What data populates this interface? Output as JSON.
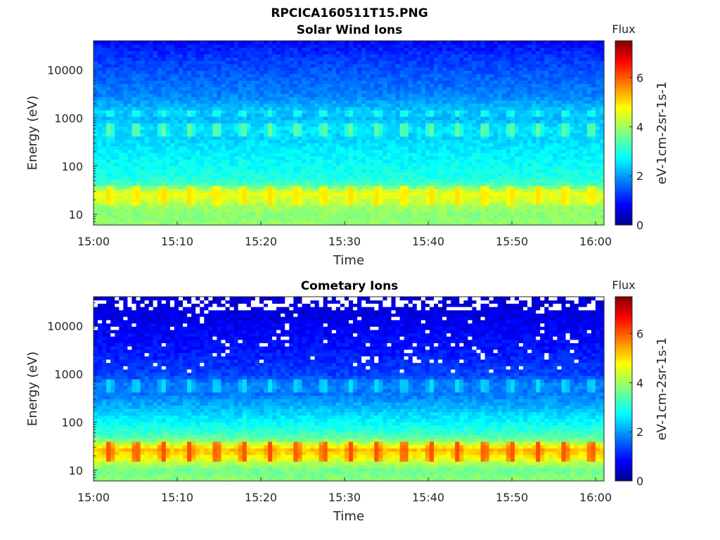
{
  "figure_title": "RPCICA160511T15.PNG",
  "colormap": "jet",
  "chart_data": [
    {
      "type": "heatmap",
      "title": "Solar Wind Ions",
      "xlabel": "Time",
      "ylabel": "Energy (eV)",
      "x_range": [
        "15:00",
        "16:01"
      ],
      "x_ticks": [
        "15:00",
        "15:10",
        "15:20",
        "15:30",
        "15:40",
        "15:50",
        "16:00"
      ],
      "y_scale": "log",
      "y_range": [
        6,
        40000
      ],
      "y_ticks": [
        "10",
        "100",
        "1000",
        "10000"
      ],
      "colorbar": {
        "title": "Flux",
        "label": "eV-1cm-2sr-1s-1",
        "range": [
          0,
          7.5
        ],
        "ticks": [
          "0",
          "2",
          "4",
          "6"
        ]
      },
      "energy_bands": [
        {
          "energy": 7,
          "level": 3.9
        },
        {
          "energy": 10,
          "level": 3.8
        },
        {
          "energy": 15,
          "level": 4.0
        },
        {
          "energy": 20,
          "level": 4.3
        },
        {
          "energy": 28,
          "level": 4.6
        },
        {
          "energy": 40,
          "level": 3.4
        },
        {
          "energy": 60,
          "level": 3.0
        },
        {
          "energy": 100,
          "level": 2.9
        },
        {
          "energy": 200,
          "level": 2.7
        },
        {
          "energy": 400,
          "level": 2.5
        },
        {
          "energy": 600,
          "level": 2.6
        },
        {
          "energy": 1000,
          "level": 2.3
        },
        {
          "energy": 1400,
          "level": 2.4
        },
        {
          "energy": 3000,
          "level": 1.9
        },
        {
          "energy": 8000,
          "level": 1.6
        },
        {
          "energy": 20000,
          "level": 1.3
        },
        {
          "energy": 38000,
          "level": 1.0
        }
      ],
      "periodic_peaks": [
        {
          "energy_range": [
            15,
            40
          ],
          "peak_level": 4.9
        },
        {
          "energy_range": [
            450,
            750
          ],
          "peak_level": 3.6
        },
        {
          "energy_range": [
            1100,
            1500
          ],
          "peak_level": 3.1
        }
      ],
      "peak_period_minutes": 3.2
    },
    {
      "type": "heatmap",
      "title": "Cometary Ions",
      "xlabel": "Time",
      "ylabel": "Energy (eV)",
      "x_range": [
        "15:00",
        "16:01"
      ],
      "x_ticks": [
        "15:00",
        "15:10",
        "15:20",
        "15:30",
        "15:40",
        "15:50",
        "16:00"
      ],
      "y_scale": "log",
      "y_range": [
        6,
        40000
      ],
      "y_ticks": [
        "10",
        "100",
        "1000",
        "10000"
      ],
      "colorbar": {
        "title": "Flux",
        "label": "eV-1cm-2sr-1s-1",
        "range": [
          0,
          7.5
        ],
        "ticks": [
          "0",
          "2",
          "4",
          "6"
        ]
      },
      "energy_bands": [
        {
          "energy": 7,
          "level": 3.8
        },
        {
          "energy": 10,
          "level": 3.6
        },
        {
          "energy": 15,
          "level": 4.2
        },
        {
          "energy": 20,
          "level": 4.8
        },
        {
          "energy": 28,
          "level": 5.2
        },
        {
          "energy": 40,
          "level": 3.8
        },
        {
          "energy": 60,
          "level": 3.2
        },
        {
          "energy": 100,
          "level": 2.8
        },
        {
          "energy": 200,
          "level": 2.3
        },
        {
          "energy": 400,
          "level": 1.8
        },
        {
          "energy": 600,
          "level": 1.9
        },
        {
          "energy": 1000,
          "level": 1.4
        },
        {
          "energy": 3000,
          "level": 1.1
        },
        {
          "energy": 8000,
          "level": 0.9
        },
        {
          "energy": 20000,
          "level": 0.7
        },
        {
          "energy": 38000,
          "level": 0.6
        }
      ],
      "periodic_peaks": [
        {
          "energy_range": [
            15,
            40
          ],
          "peak_level": 6.0
        },
        {
          "energy_range": [
            450,
            750
          ],
          "peak_level": 2.6
        }
      ],
      "peak_period_minutes": 3.2,
      "empty_cells": "white gaps at energies above ~20000 eV and scattered above ~1000 eV"
    }
  ]
}
